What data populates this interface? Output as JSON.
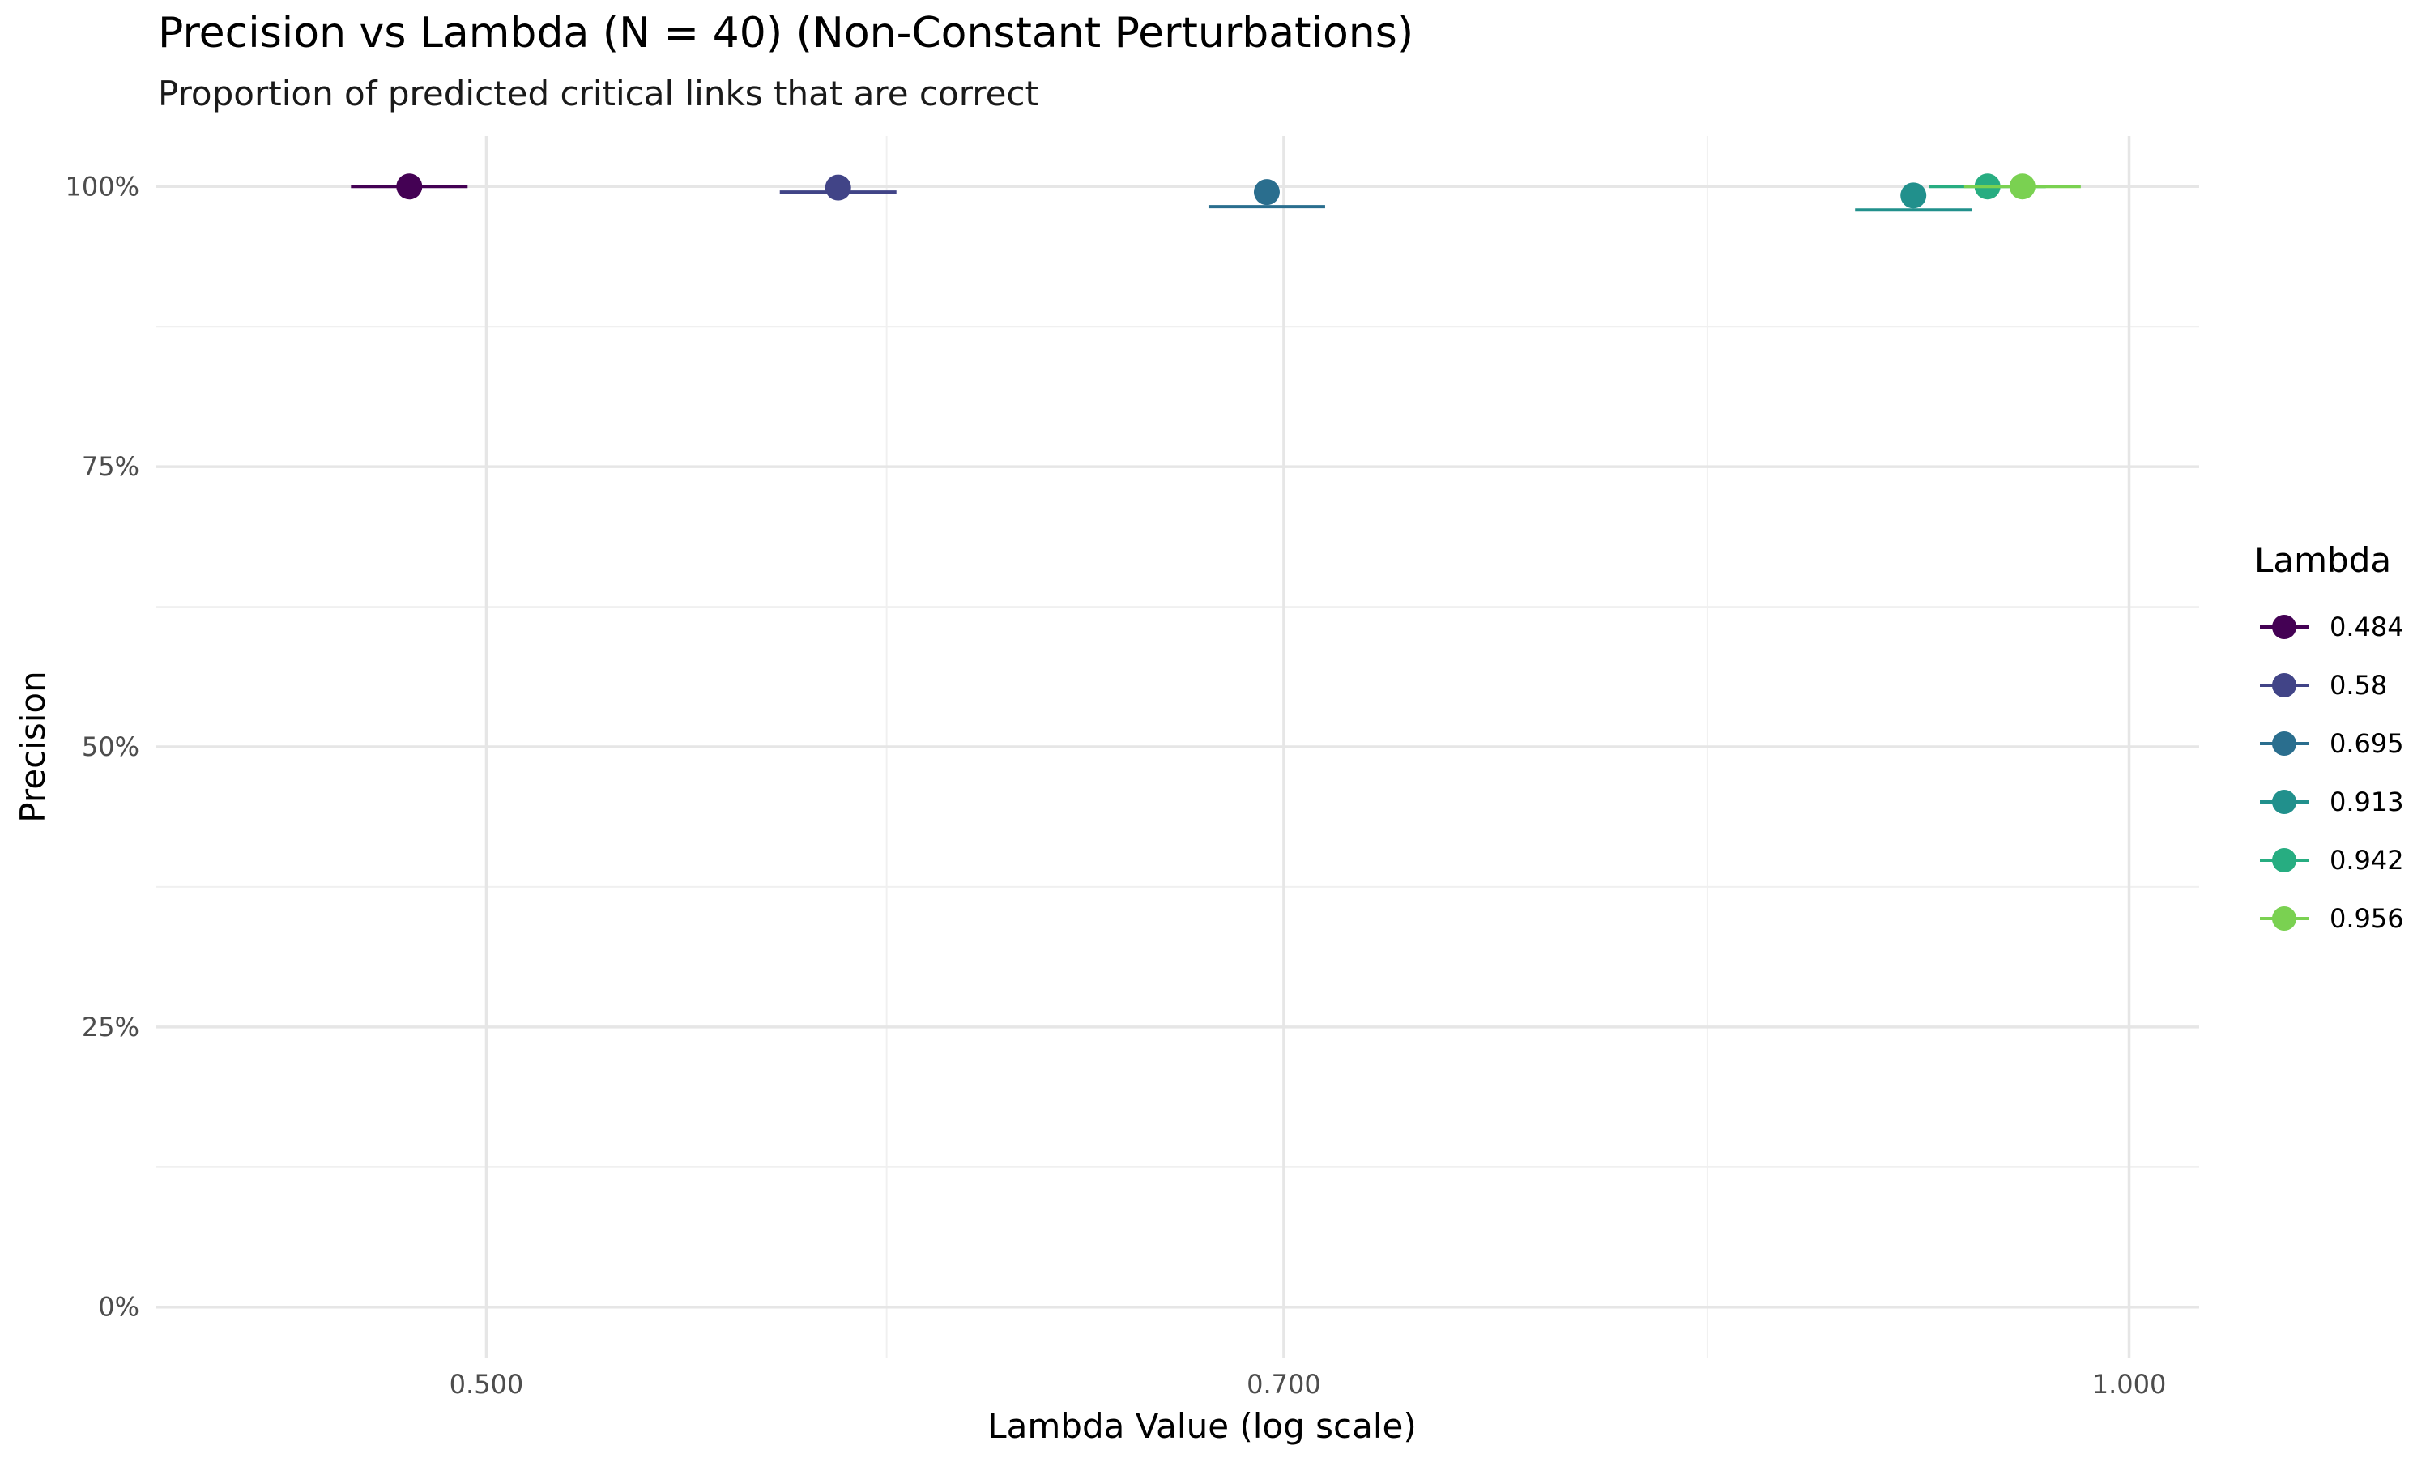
{
  "chart_data": {
    "type": "scatter",
    "title": "Precision vs Lambda (N = 40) (Non-Constant Perturbations)",
    "subtitle": "Proportion of predicted critical links that are correct",
    "xlabel": "Lambda Value (log scale)",
    "ylabel": "Precision",
    "x_scale": "log",
    "xlim": [
      0.435,
      1.03
    ],
    "ylim": [
      -0.045,
      1.045
    ],
    "x_ticks": [
      {
        "value": 0.5,
        "label": "0.500"
      },
      {
        "value": 0.7,
        "label": "0.700"
      },
      {
        "value": 1.0,
        "label": "1.000"
      }
    ],
    "x_minor_ticks": [
      0.592,
      0.837
    ],
    "y_ticks": [
      {
        "value": 0,
        "label": "0%"
      },
      {
        "value": 0.25,
        "label": "25%"
      },
      {
        "value": 0.5,
        "label": "50%"
      },
      {
        "value": 0.75,
        "label": "75%"
      },
      {
        "value": 1.0,
        "label": "100%"
      }
    ],
    "y_minor_ticks": [
      0.125,
      0.375,
      0.625,
      0.875
    ],
    "grid": true,
    "legend": {
      "title": "Lambda",
      "position": "right"
    },
    "series": [
      {
        "name": "0.484",
        "color": "#440154",
        "x": 0.484,
        "point": 1.0,
        "errorbar": 1.0
      },
      {
        "name": "0.58",
        "color": "#414487",
        "x": 0.58,
        "point": 0.999,
        "errorbar": 0.995
      },
      {
        "name": "0.695",
        "color": "#2A6E8E",
        "x": 0.695,
        "point": 0.995,
        "errorbar": 0.982
      },
      {
        "name": "0.913",
        "color": "#21908C",
        "x": 0.913,
        "point": 0.992,
        "errorbar": 0.979
      },
      {
        "name": "0.942",
        "color": "#27AD81",
        "x": 0.942,
        "point": 1.0,
        "errorbar": 1.0
      },
      {
        "name": "0.956",
        "color": "#7AD151",
        "x": 0.956,
        "point": 1.0,
        "errorbar": 1.0
      }
    ]
  }
}
